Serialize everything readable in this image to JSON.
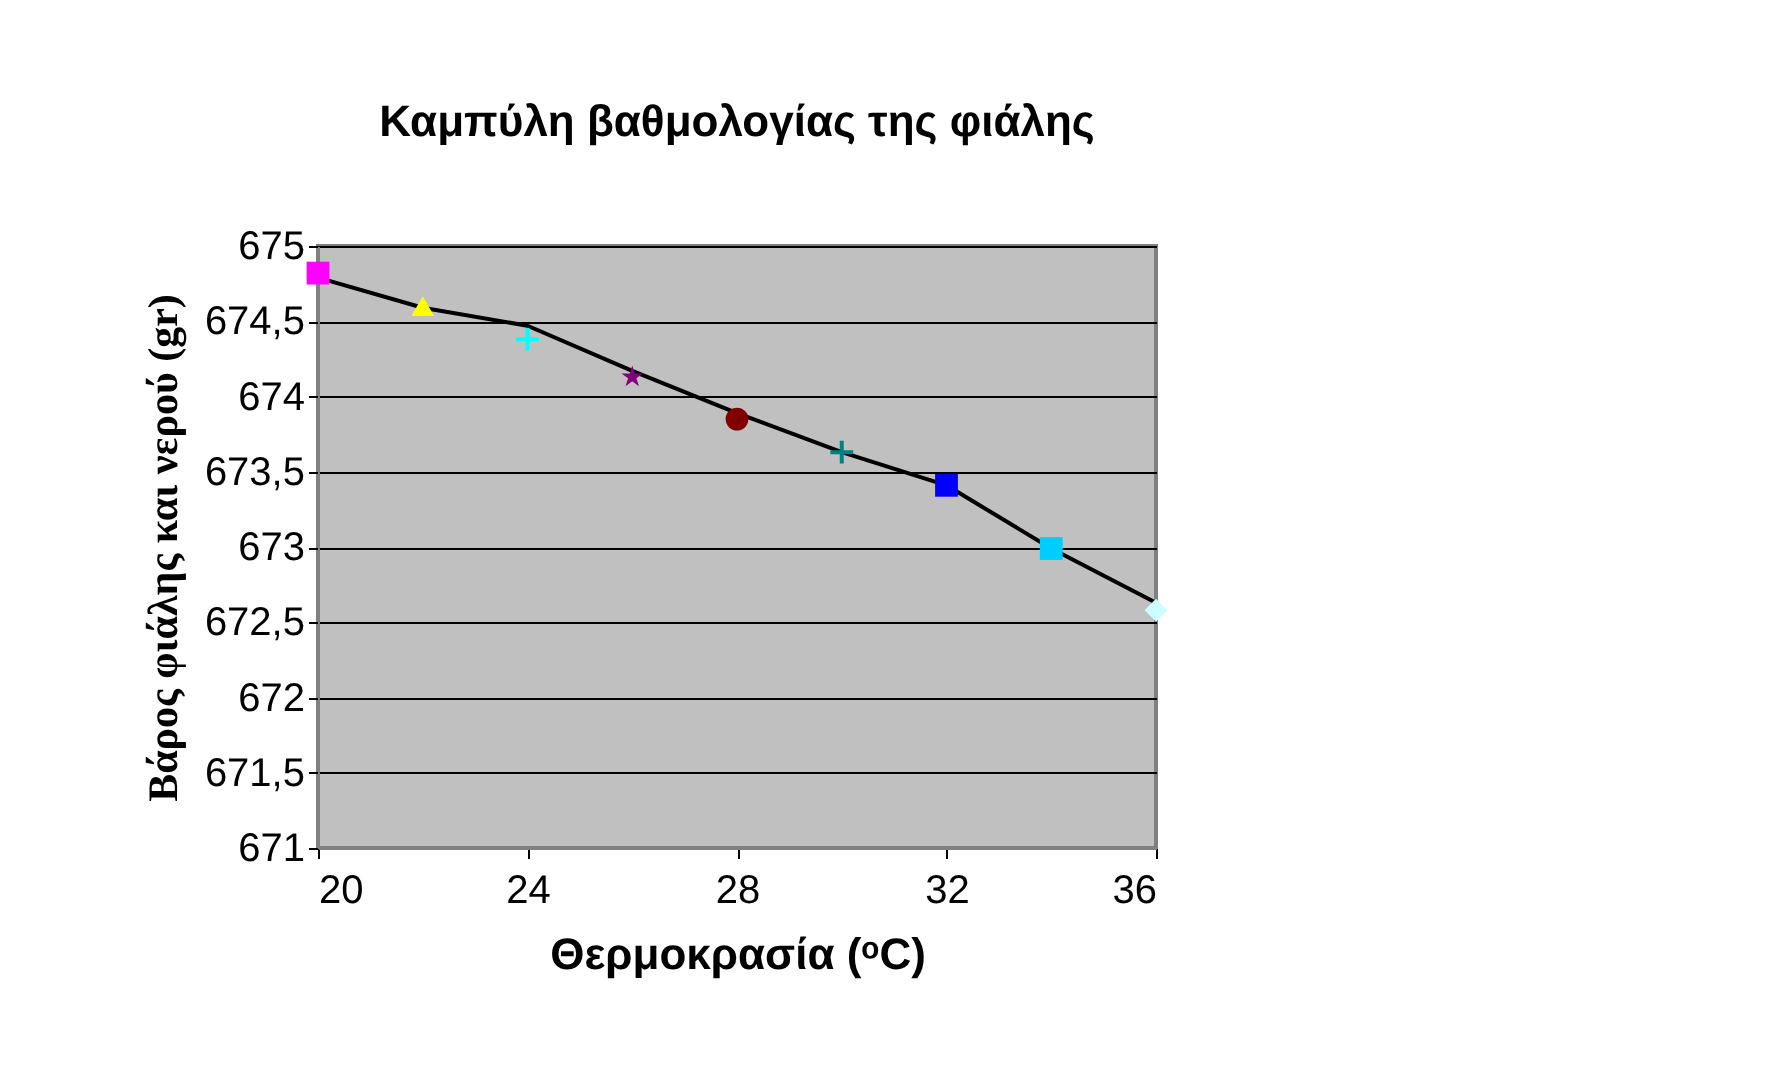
{
  "chart_data": {
    "type": "scatter",
    "title": "Καμπύλη βαθμολογίας της φιάλης",
    "xlabel": "Θερμοκρασία (ᵒC)",
    "ylabel": "Βάρος φιάλης και νερού  (gr)",
    "xlim": [
      20,
      36
    ],
    "xticks": [
      20,
      24,
      28,
      32,
      36
    ],
    "ylim": [
      671,
      675
    ],
    "yticks": [
      671,
      {
        "value": 671.5,
        "label": "671,5"
      },
      672,
      {
        "value": 672.5,
        "label": "672,5"
      },
      673,
      {
        "value": 673.5,
        "label": "673,5"
      },
      674,
      {
        "value": 674.5,
        "label": "674,5"
      },
      675
    ],
    "grid": "y",
    "series": [
      {
        "type": "line",
        "color": "#000000",
        "marker": "none",
        "x": [
          20,
          22,
          24,
          26,
          28,
          30,
          32,
          34,
          36
        ],
        "values": [
          674.79,
          674.59,
          674.47,
          674.17,
          673.89,
          673.63,
          673.41,
          672.99,
          672.63
        ]
      },
      {
        "color": "#ff00ff",
        "marker": "square",
        "x": [
          20
        ],
        "values": [
          674.82
        ]
      },
      {
        "color": "#ffff00",
        "marker": "triangle",
        "x": [
          22
        ],
        "values": [
          674.6
        ]
      },
      {
        "color": "#00ffff",
        "marker": "cross",
        "x": [
          24
        ],
        "values": [
          674.38
        ]
      },
      {
        "color": "#800080",
        "marker": "star",
        "x": [
          26
        ],
        "values": [
          674.13
        ]
      },
      {
        "color": "#800000",
        "marker": "circle",
        "x": [
          28
        ],
        "values": [
          673.85
        ]
      },
      {
        "color": "#008080",
        "marker": "cross",
        "x": [
          30
        ],
        "values": [
          673.63
        ]
      },
      {
        "color": "#0000ff",
        "marker": "square",
        "x": [
          32
        ],
        "values": [
          673.41
        ]
      },
      {
        "color": "#00ccff",
        "marker": "square",
        "x": [
          34
        ],
        "values": [
          672.99
        ]
      },
      {
        "color": "#ccffff",
        "marker": "diamond",
        "x": [
          36
        ],
        "values": [
          672.58
        ]
      }
    ]
  }
}
